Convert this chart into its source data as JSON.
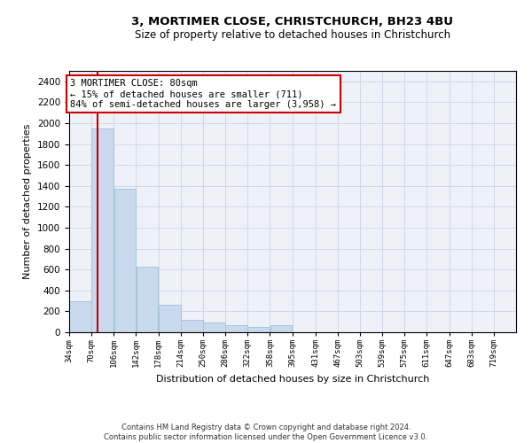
{
  "title1": "3, MORTIMER CLOSE, CHRISTCHURCH, BH23 4BU",
  "title2": "Size of property relative to detached houses in Christchurch",
  "xlabel": "Distribution of detached houses by size in Christchurch",
  "ylabel": "Number of detached properties",
  "footer1": "Contains HM Land Registry data © Crown copyright and database right 2024.",
  "footer2": "Contains public sector information licensed under the Open Government Licence v3.0.",
  "annotation_line1": "3 MORTIMER CLOSE: 80sqm",
  "annotation_line2": "← 15% of detached houses are smaller (711)",
  "annotation_line3": "84% of semi-detached houses are larger (3,958) →",
  "property_size_sqm": 80,
  "bar_color": "#c9d9ee",
  "bar_edge_color": "#a8c4dc",
  "vline_color": "#cc0000",
  "grid_color": "#d0d8e8",
  "background_color": "#eef2f8",
  "bins": [
    34,
    70,
    106,
    142,
    178,
    214,
    250,
    286,
    322,
    358,
    395,
    431,
    467,
    503,
    539,
    575,
    611,
    647,
    683,
    719,
    755
  ],
  "bar_heights": [
    300,
    1950,
    1370,
    625,
    260,
    120,
    90,
    65,
    55,
    65,
    0,
    0,
    0,
    0,
    0,
    0,
    0,
    0,
    0,
    0
  ],
  "ylim": [
    0,
    2500
  ],
  "yticks": [
    0,
    200,
    400,
    600,
    800,
    1000,
    1200,
    1400,
    1600,
    1800,
    2000,
    2200,
    2400
  ],
  "annotation_box_color": "#ffffff",
  "annotation_border_color": "#cc0000",
  "fig_width": 6.0,
  "fig_height": 5.0,
  "dpi": 100
}
